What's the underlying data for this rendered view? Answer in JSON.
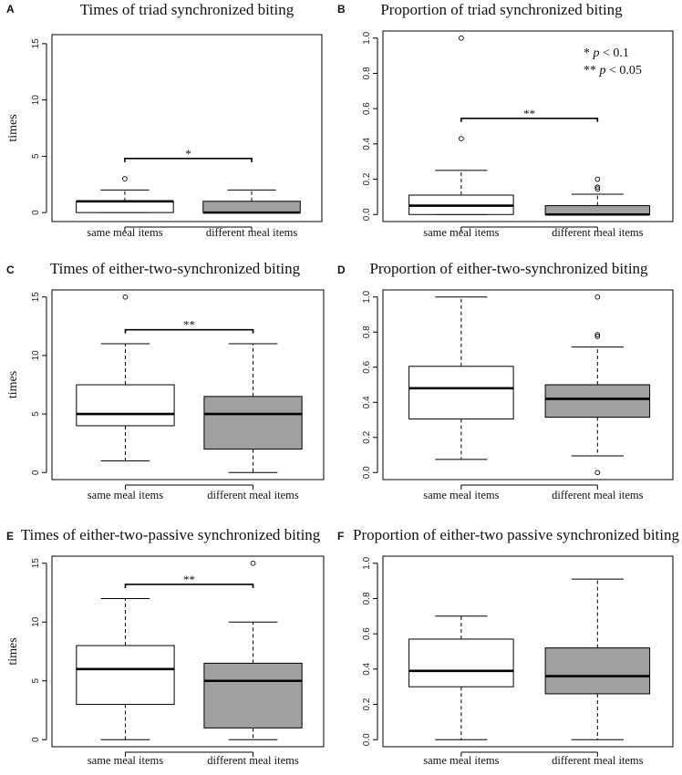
{
  "chart_data": [
    {
      "type": "box",
      "panel_label": "A",
      "title": "Times of triad synchronized biting",
      "ylabel": "times",
      "ylim": [
        -0.8,
        15.8
      ],
      "yticks": [
        "0",
        "5",
        "10",
        "15"
      ],
      "categories": [
        "same meal items",
        "different meal items"
      ],
      "colors": [
        "#ffffff",
        "#a0a0a0"
      ],
      "boxes": [
        {
          "category": "same meal items",
          "whisker_low": 0,
          "q1": 0,
          "median": 1,
          "q3": 1,
          "whisker_high": 2,
          "outliers": [
            3
          ]
        },
        {
          "category": "different meal items",
          "whisker_low": 0,
          "q1": 0,
          "median": 0,
          "q3": 1,
          "whisker_high": 2,
          "outliers": []
        }
      ],
      "significance": {
        "label": "*",
        "y": 4.8
      }
    },
    {
      "type": "box",
      "panel_label": "B",
      "title": "Proportion of triad synchronized biting",
      "ylabel": "",
      "ylim": [
        -0.04,
        1.04
      ],
      "yticks": [
        "0.0",
        "0.2",
        "0.4",
        "0.6",
        "0.8",
        "1.0"
      ],
      "categories": [
        "same meal items",
        "different meal items"
      ],
      "colors": [
        "#ffffff",
        "#a0a0a0"
      ],
      "boxes": [
        {
          "category": "same meal items",
          "whisker_low": 0,
          "q1": 0,
          "median": 0.05,
          "q3": 0.11,
          "whisker_high": 0.25,
          "outliers": [
            0.43,
            1.0
          ]
        },
        {
          "category": "different meal items",
          "whisker_low": 0,
          "q1": 0,
          "median": 0,
          "q3": 0.05,
          "whisker_high": 0.115,
          "outliers": [
            0.145,
            0.155,
            0.2
          ]
        }
      ],
      "significance": {
        "label": "**",
        "y": 0.545
      },
      "notes": [
        {
          "stars": "*",
          "p": "p",
          "rest": "< 0.1"
        },
        {
          "stars": "**",
          "p": "p",
          "rest": "< 0.05"
        }
      ]
    },
    {
      "type": "box",
      "panel_label": "C",
      "title": "Times of either-two-synchronized biting",
      "ylabel": "times",
      "ylim": [
        -0.6,
        15.6
      ],
      "yticks": [
        "0",
        "5",
        "10",
        "15"
      ],
      "categories": [
        "same meal items",
        "different meal items"
      ],
      "colors": [
        "#ffffff",
        "#a0a0a0"
      ],
      "boxes": [
        {
          "category": "same meal items",
          "whisker_low": 1,
          "q1": 4,
          "median": 5,
          "q3": 7.5,
          "whisker_high": 11,
          "outliers": [
            15
          ]
        },
        {
          "category": "different meal items",
          "whisker_low": 0,
          "q1": 2,
          "median": 5,
          "q3": 6.5,
          "whisker_high": 11,
          "outliers": []
        }
      ],
      "significance": {
        "label": "**",
        "y": 12.2
      }
    },
    {
      "type": "box",
      "panel_label": "D",
      "title": "Proportion of either-two-synchronized biting",
      "ylabel": "",
      "ylim": [
        -0.04,
        1.04
      ],
      "yticks": [
        "0.0",
        "0.2",
        "0.4",
        "0.6",
        "0.8",
        "1.0"
      ],
      "categories": [
        "same meal items",
        "different meal items"
      ],
      "colors": [
        "#ffffff",
        "#a0a0a0"
      ],
      "boxes": [
        {
          "category": "same meal items",
          "whisker_low": 0.075,
          "q1": 0.305,
          "median": 0.48,
          "q3": 0.605,
          "whisker_high": 1.0,
          "outliers": []
        },
        {
          "category": "different meal items",
          "whisker_low": 0.095,
          "q1": 0.315,
          "median": 0.42,
          "q3": 0.5,
          "whisker_high": 0.715,
          "outliers": [
            0.0,
            0.775,
            0.785,
            1.0
          ]
        }
      ],
      "significance": null
    },
    {
      "type": "box",
      "panel_label": "E",
      "title": "Times of either-two-passive synchronized biting",
      "ylabel": "times",
      "ylim": [
        -0.6,
        15.6
      ],
      "yticks": [
        "0",
        "5",
        "10",
        "15"
      ],
      "categories": [
        "same meal items",
        "different meal items"
      ],
      "colors": [
        "#ffffff",
        "#a0a0a0"
      ],
      "boxes": [
        {
          "category": "same meal items",
          "whisker_low": 0,
          "q1": 3,
          "median": 6,
          "q3": 8,
          "whisker_high": 12,
          "outliers": []
        },
        {
          "category": "different meal items",
          "whisker_low": 0,
          "q1": 1,
          "median": 5,
          "q3": 6.5,
          "whisker_high": 10,
          "outliers": [
            15
          ]
        }
      ],
      "significance": {
        "label": "**",
        "y": 13.2
      }
    },
    {
      "type": "box",
      "panel_label": "F",
      "title": "Proportion of either-two passive synchronized biting",
      "ylabel": "",
      "ylim": [
        -0.04,
        1.04
      ],
      "yticks": [
        "0.0",
        "0.2",
        "0.4",
        "0.6",
        "0.8",
        "1.0"
      ],
      "categories": [
        "same meal items",
        "different meal items"
      ],
      "colors": [
        "#ffffff",
        "#a0a0a0"
      ],
      "boxes": [
        {
          "category": "same meal items",
          "whisker_low": 0,
          "q1": 0.3,
          "median": 0.39,
          "q3": 0.57,
          "whisker_high": 0.7,
          "outliers": []
        },
        {
          "category": "different meal items",
          "whisker_low": 0,
          "q1": 0.26,
          "median": 0.36,
          "q3": 0.52,
          "whisker_high": 0.91,
          "outliers": []
        }
      ],
      "significance": null
    }
  ]
}
